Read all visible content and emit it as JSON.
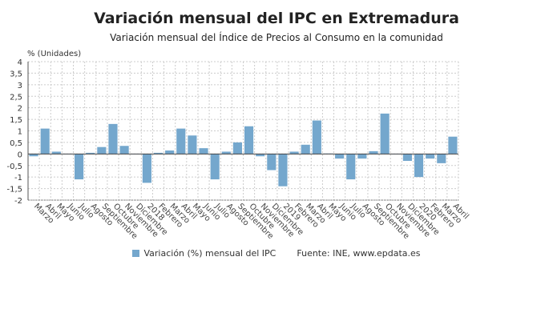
{
  "chart_data": {
    "type": "bar",
    "title": "Variación mensual del IPC en Extremadura",
    "subtitle": "Variación mensual del Índice de Precios al Consumo en la comunidad",
    "ylabel": "% (Unidades)",
    "ylim": [
      -2,
      4
    ],
    "yticks": [
      "4",
      "3,5",
      "3",
      "2,5",
      "2",
      "1,5",
      "1",
      "0,5",
      "0",
      "-0,5",
      "-1",
      "-1,5",
      "-2"
    ],
    "grid": true,
    "legend_position": "bottom",
    "color": "#74a7cd",
    "categories": [
      "Marzo",
      "Abril",
      "Mayo",
      "Junio",
      "Julio",
      "Agosto",
      "Septiembre",
      "Octubre",
      "Noviembre",
      "Diciembre",
      "2018",
      "Febrero",
      "Marzo",
      "Abril",
      "Mayo",
      "Junio",
      "Julio",
      "Agosto",
      "Septiembre",
      "Octubre",
      "Noviembre",
      "Diciembre",
      "2019",
      "Febrero",
      "Marzo",
      "Abril",
      "Mayo",
      "Junio",
      "Julio",
      "Agosto",
      "Septiembre",
      "Octubre",
      "Noviembre",
      "Diciembre",
      "2020",
      "Febrero",
      "Marzo",
      "Abril"
    ],
    "series": [
      {
        "name": "Variación (%) mensual del IPC",
        "values": [
          -0.1,
          1.1,
          0.1,
          0,
          -1.1,
          0.05,
          0.3,
          1.3,
          0.35,
          0,
          -1.25,
          0.05,
          0.15,
          1.1,
          0.8,
          0.25,
          -1.1,
          0.1,
          0.5,
          1.2,
          -0.1,
          -0.7,
          -1.4,
          0.1,
          0.4,
          1.45,
          0.02,
          -0.2,
          -1.1,
          -0.2,
          0.12,
          1.75,
          0,
          -0.3,
          -1.0,
          -0.2,
          -0.4,
          0.75
        ]
      }
    ],
    "source": "Fuente: INE, www.epdata.es"
  }
}
